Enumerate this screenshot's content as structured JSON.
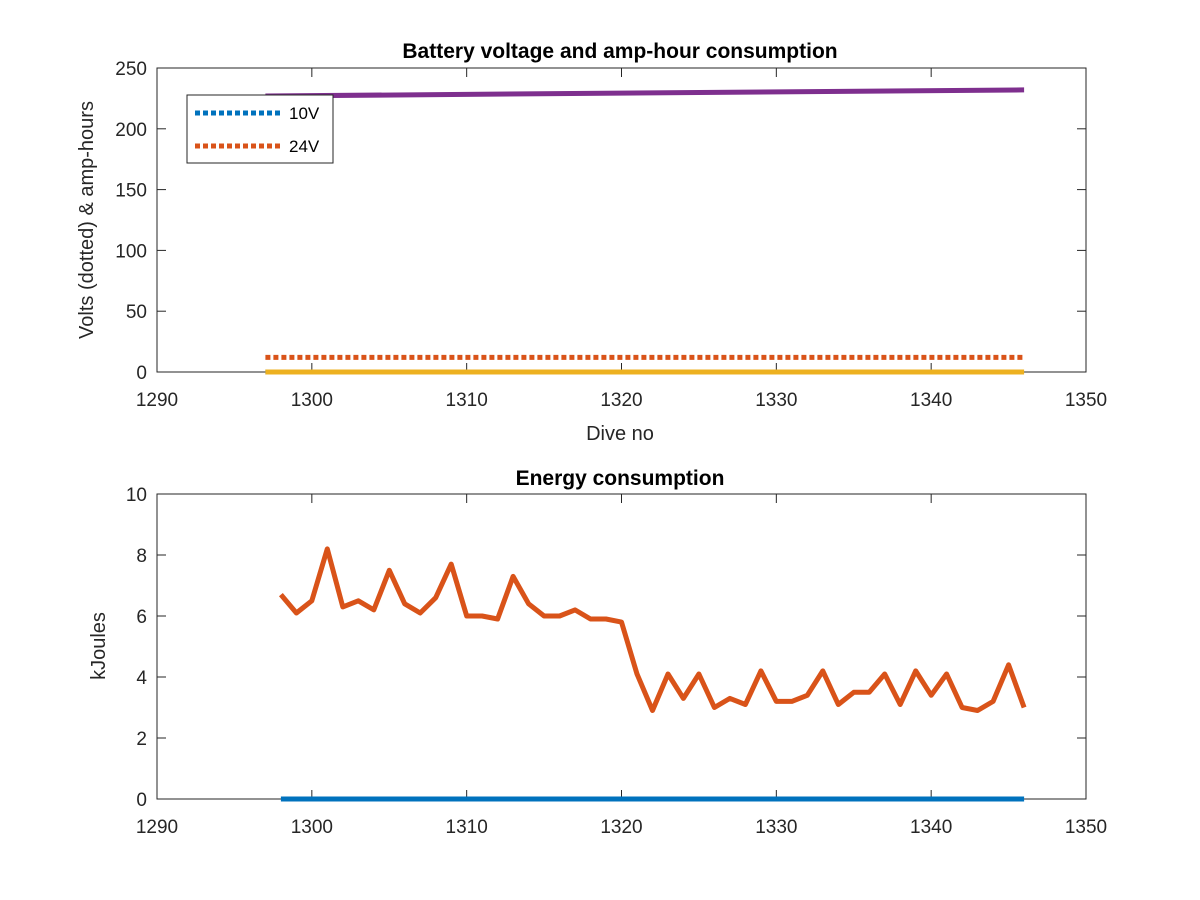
{
  "chart_data": [
    {
      "type": "line",
      "title": "Battery voltage and amp-hour consumption",
      "xlabel": "Dive no",
      "ylabel": "Volts (dotted) & amp-hours",
      "xlim": [
        1290,
        1350
      ],
      "ylim": [
        0,
        250
      ],
      "xticks": [
        "1290",
        "1300",
        "1310",
        "1320",
        "1330",
        "1340",
        "1350"
      ],
      "yticks": [
        "0",
        "50",
        "100",
        "150",
        "200",
        "250"
      ],
      "grid": false,
      "legend_position": "top-left",
      "legend": [
        "10V",
        "24V"
      ],
      "series": [
        {
          "name": "10V",
          "style": "dotted",
          "color": "#0072BD",
          "x": [
            1297,
            1346
          ],
          "values": [
            0,
            0
          ]
        },
        {
          "name": "24V",
          "style": "dotted",
          "color": "#D95319",
          "x": [
            1297,
            1346
          ],
          "values": [
            12,
            12
          ]
        },
        {
          "style": "solid",
          "color": "#EDB120",
          "x": [
            1297,
            1346
          ],
          "values": [
            0,
            0
          ]
        },
        {
          "style": "solid",
          "color": "#7E2F8E",
          "x": [
            1297,
            1346
          ],
          "values": [
            227,
            232
          ]
        }
      ]
    },
    {
      "type": "line",
      "title": "Energy consumption",
      "xlabel": "",
      "ylabel": "kJoules",
      "xlim": [
        1290,
        1350
      ],
      "ylim": [
        0,
        10
      ],
      "xticks": [
        "1290",
        "1300",
        "1310",
        "1320",
        "1330",
        "1340",
        "1350"
      ],
      "yticks": [
        "0",
        "2",
        "4",
        "6",
        "8",
        "10"
      ],
      "grid": false,
      "series": [
        {
          "style": "solid",
          "color": "#0072BD",
          "x": [
            1298,
            1346
          ],
          "values": [
            0,
            0
          ]
        },
        {
          "style": "solid",
          "color": "#D95319",
          "x": [
            1298,
            1299,
            1300,
            1301,
            1302,
            1303,
            1304,
            1305,
            1306,
            1307,
            1308,
            1309,
            1310,
            1311,
            1312,
            1313,
            1314,
            1315,
            1316,
            1317,
            1318,
            1319,
            1320,
            1321,
            1322,
            1323,
            1324,
            1325,
            1326,
            1327,
            1328,
            1329,
            1330,
            1331,
            1332,
            1333,
            1334,
            1335,
            1336,
            1337,
            1338,
            1339,
            1340,
            1341,
            1342,
            1343,
            1344,
            1345,
            1346
          ],
          "values": [
            6.7,
            6.1,
            6.5,
            8.2,
            6.3,
            6.5,
            6.2,
            7.5,
            6.4,
            6.1,
            6.6,
            7.7,
            6.0,
            6.0,
            5.9,
            7.3,
            6.4,
            6.0,
            6.0,
            6.2,
            5.9,
            5.9,
            5.8,
            4.1,
            2.9,
            4.1,
            3.3,
            4.1,
            3.0,
            3.3,
            3.1,
            4.2,
            3.2,
            3.2,
            3.4,
            4.2,
            3.1,
            3.5,
            3.5,
            4.1,
            3.1,
            4.2,
            3.4,
            4.1,
            3.0,
            2.9,
            3.2,
            4.4,
            3.0
          ]
        }
      ]
    }
  ]
}
